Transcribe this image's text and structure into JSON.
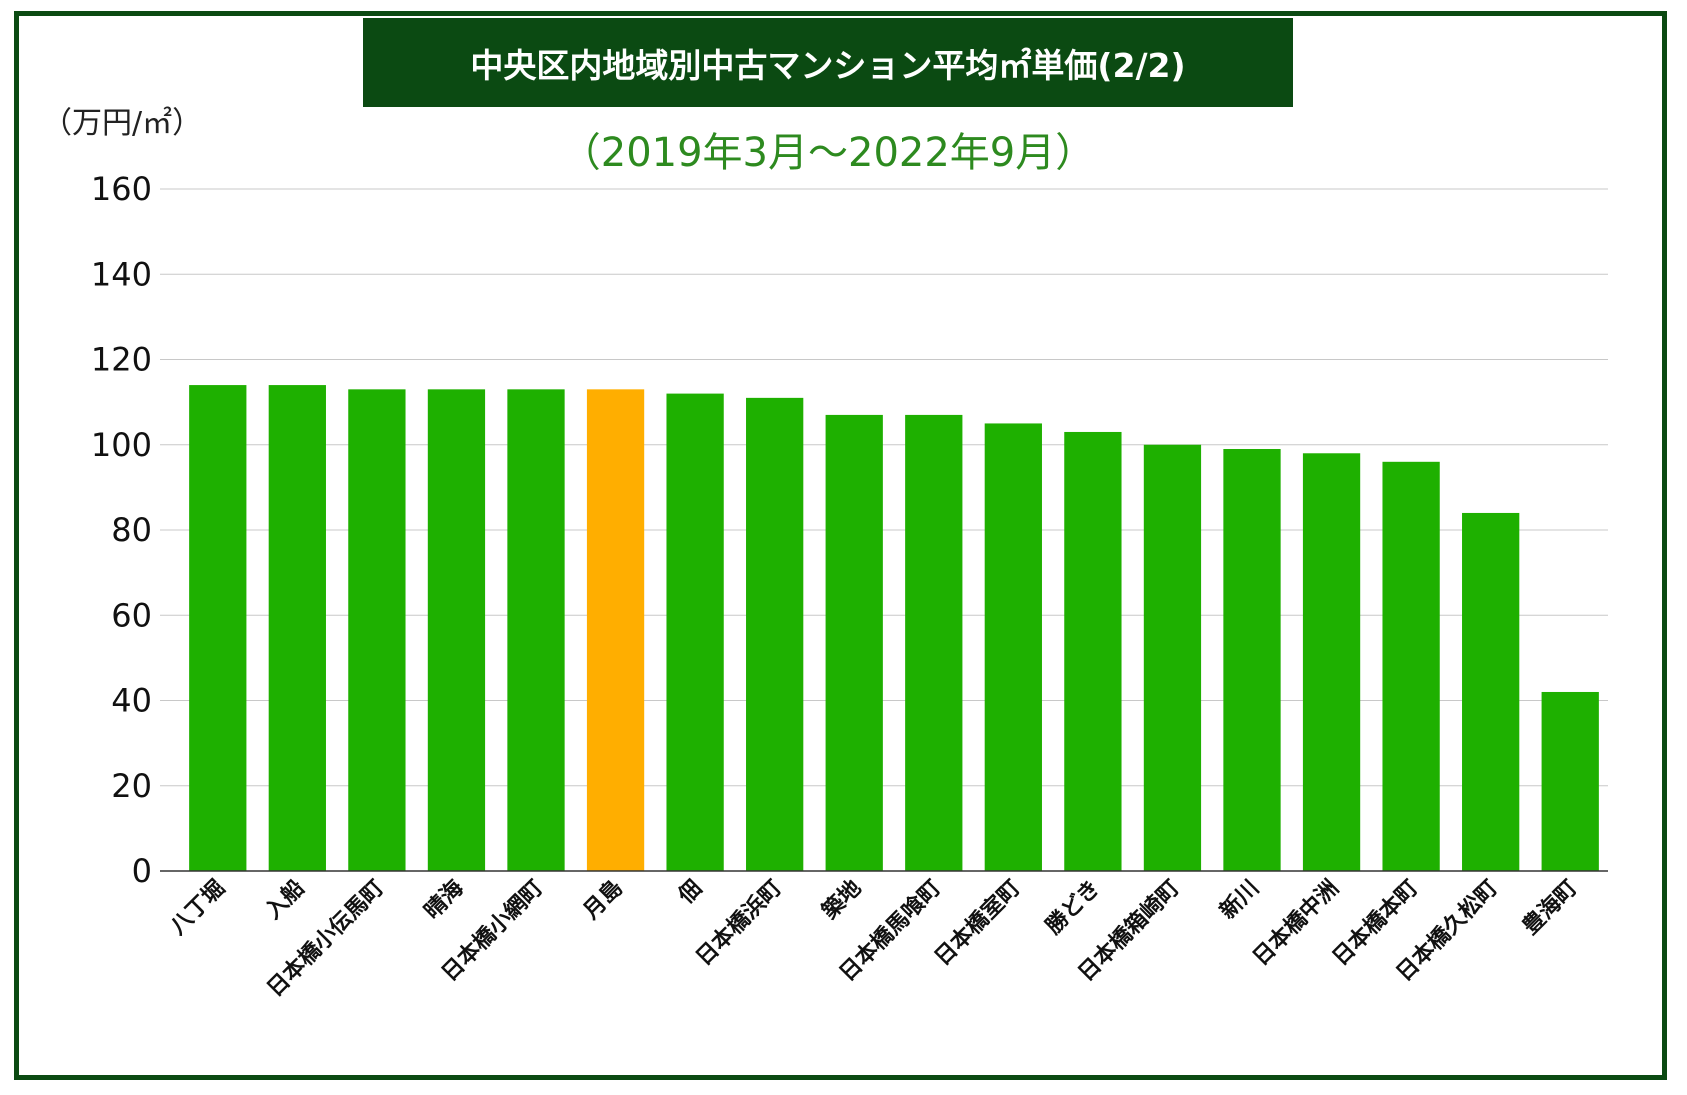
{
  "chart_data": {
    "type": "bar",
    "title": "中央区内地域別中古マンション平均㎡単価(2/2)",
    "subtitle": "（2019年3月〜2022年9月）",
    "ylabel": "（万円/㎡）",
    "xlabel": "",
    "ylim": [
      0,
      160
    ],
    "yticks": [
      0,
      20,
      40,
      60,
      80,
      100,
      120,
      140,
      160
    ],
    "grid": true,
    "categories": [
      "八丁堀",
      "入船",
      "日本橋小伝馬町",
      "晴海",
      "日本橋小網町",
      "月島",
      "佃",
      "日本橋浜町",
      "築地",
      "日本橋馬喰町",
      "日本橋室町",
      "勝どき",
      "日本橋箱崎町",
      "新川",
      "日本橋中洲",
      "日本橋本町",
      "日本橋久松町",
      "豊海町"
    ],
    "values": [
      114,
      114,
      113,
      113,
      113,
      113,
      112,
      111,
      107,
      107,
      105,
      103,
      100,
      99,
      98,
      96,
      84,
      42
    ],
    "bar_color": "#1eb000",
    "highlight_color": "#ffae00",
    "highlight_index": 5,
    "grid_color": "#c8c8c8"
  }
}
